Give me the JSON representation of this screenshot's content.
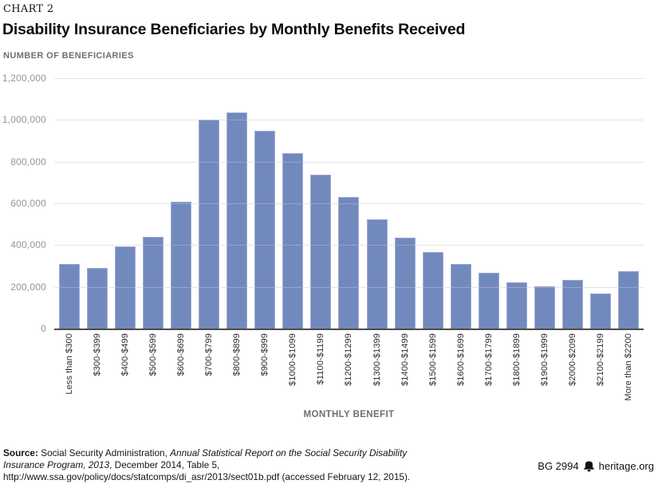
{
  "header": {
    "kicker": "CHART 2",
    "title": "Disability Insurance Beneficiaries by Monthly Benefits Received"
  },
  "chart_data": {
    "type": "bar",
    "title": "Disability Insurance Beneficiaries by Monthly Benefits Received",
    "ylabel": "NUMBER OF BENEFICIARIES",
    "xlabel": "MONTHLY BENEFIT",
    "categories": [
      "Less than $300",
      "$300-$399",
      "$400-$499",
      "$500-$599",
      "$600-$699",
      "$700-$799",
      "$800-$899",
      "$900-$999",
      "$1000-$1099",
      "$1100-$1199",
      "$1200-$1299",
      "$1300-$1399",
      "$1400-$1499",
      "$1500-$1599",
      "$1600-$1699",
      "$1700-$1799",
      "$1800-$1899",
      "$1900-$1999",
      "$2000-$2099",
      "$2100-$2199",
      "More than $2200"
    ],
    "values": [
      311000,
      291000,
      393000,
      441000,
      607000,
      1003000,
      1035000,
      946000,
      842000,
      738000,
      631000,
      522000,
      437000,
      368000,
      310000,
      267000,
      220000,
      203000,
      232000,
      167000,
      277000
    ],
    "ylim": [
      0,
      1200000
    ],
    "ytick_interval": 200000,
    "yticks": [
      "1,200,000",
      "1,000,000",
      "800,000",
      "600,000",
      "400,000",
      "200,000",
      "0"
    ],
    "grid": true,
    "legend_position": "none",
    "bar_color": "#7289be",
    "bar_border_color": "#a0aed4",
    "gridline_color": "#e4e4e4",
    "axis_color": "#4c4c4c"
  },
  "footer": {
    "source_label": "Source:",
    "source_before_italic": " Social Security Administration, ",
    "source_italic": "Annual Statistical Report on the Social Security Disability Insurance Program, 2013",
    "source_after_italic": ", December 2014, Table 5, http://www.ssa.gov/policy/docs/statcomps/di_asr/2013/sect01b.pdf (accessed February 12, 2015).",
    "doc_id": "BG 2994",
    "brand": "heritage.org",
    "brand_icon": "liberty-bell"
  }
}
